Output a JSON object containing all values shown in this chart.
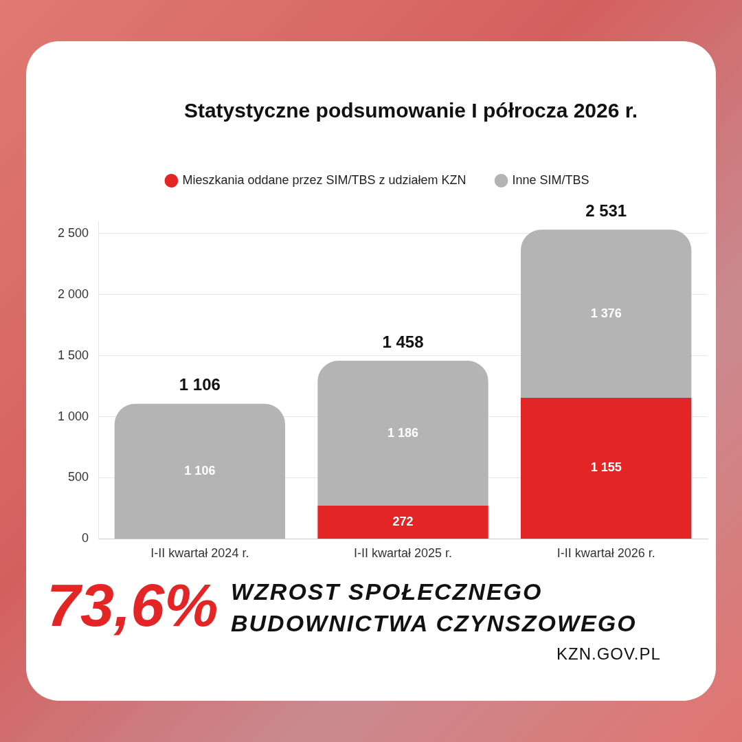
{
  "chart_data": {
    "type": "bar",
    "title": "Statystyczne podsumowanie I półrocza 2026 r.",
    "categories": [
      "I-II kwartał 2024 r.",
      "I-II kwartał 2025 r.",
      "I-II kwartał 2026 r."
    ],
    "stacked": true,
    "series": [
      {
        "name": "Mieszkania oddane przez SIM/TBS z udziałem KZN",
        "color": "#e32526",
        "values": [
          null,
          272,
          1155
        ],
        "value_labels": [
          null,
          "272",
          "1 155"
        ]
      },
      {
        "name": "Inne SIM/TBS",
        "color": "#b4b4b4",
        "values": [
          1106,
          1186,
          1376
        ],
        "value_labels": [
          "1 106",
          "1 186",
          "1 376"
        ]
      }
    ],
    "totals": [
      "1 106",
      "1 458",
      "2 531"
    ],
    "ylim": [
      0,
      2600
    ],
    "yticks": [
      {
        "value": 0,
        "label": "0"
      },
      {
        "value": 500,
        "label": "500"
      },
      {
        "value": 1000,
        "label": "1 000"
      },
      {
        "value": 1500,
        "label": "1 500"
      },
      {
        "value": 2000,
        "label": "2 000"
      },
      {
        "value": 2500,
        "label": "2 500"
      }
    ],
    "grid": "y",
    "legend": "top",
    "annotations": [
      "73,6%",
      "WZROST SPOŁECZNEGO BUDOWNICTWA CZYNSZOWEGO",
      "KZN.GOV.PL"
    ]
  }
}
